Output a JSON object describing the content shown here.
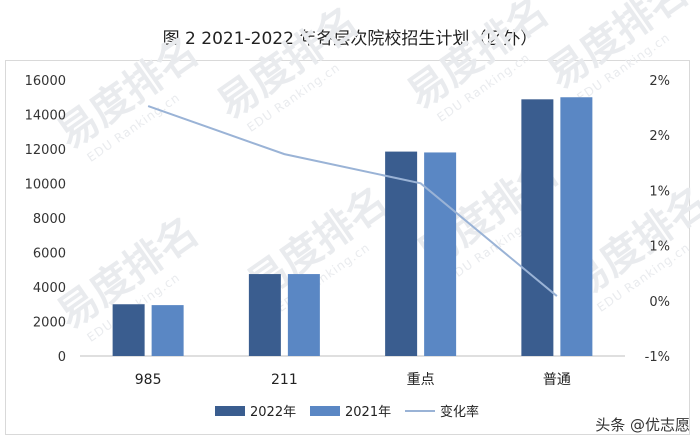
{
  "chart_data": {
    "type": "bar",
    "title": "图 2 2021-2022 年各层次院校招生计划（区外）",
    "categories": [
      "985",
      "211",
      "重点",
      "普通"
    ],
    "series": [
      {
        "name": "2022年",
        "type": "bar",
        "axis": "left",
        "color": "#3a5d8f",
        "values": [
          3000,
          4750,
          11850,
          14880
        ]
      },
      {
        "name": "2021年",
        "type": "bar",
        "axis": "left",
        "color": "#5a87c4",
        "values": [
          2950,
          4750,
          11800,
          15000
        ]
      },
      {
        "name": "变化率",
        "type": "line",
        "axis": "right",
        "color": "#9ab3d6",
        "values": [
          0.0217,
          0.0156,
          0.0119,
          -0.0024
        ]
      }
    ],
    "y_left": {
      "min": 0,
      "max": 16000,
      "step": 2000,
      "ticks": [
        "0",
        "2000",
        "4000",
        "6000",
        "8000",
        "10000",
        "12000",
        "14000",
        "16000"
      ]
    },
    "y_right": {
      "min": -0.01,
      "max": 0.025,
      "ticks": [
        "-1%",
        "0%",
        "1%",
        "1%",
        "2%",
        "2%"
      ]
    },
    "grid": false,
    "legend_position": "bottom"
  },
  "watermark": {
    "text": "易度排名",
    "subtext": "EDU Ranking.cn"
  },
  "credit": {
    "text": "头条 @优志愿"
  }
}
